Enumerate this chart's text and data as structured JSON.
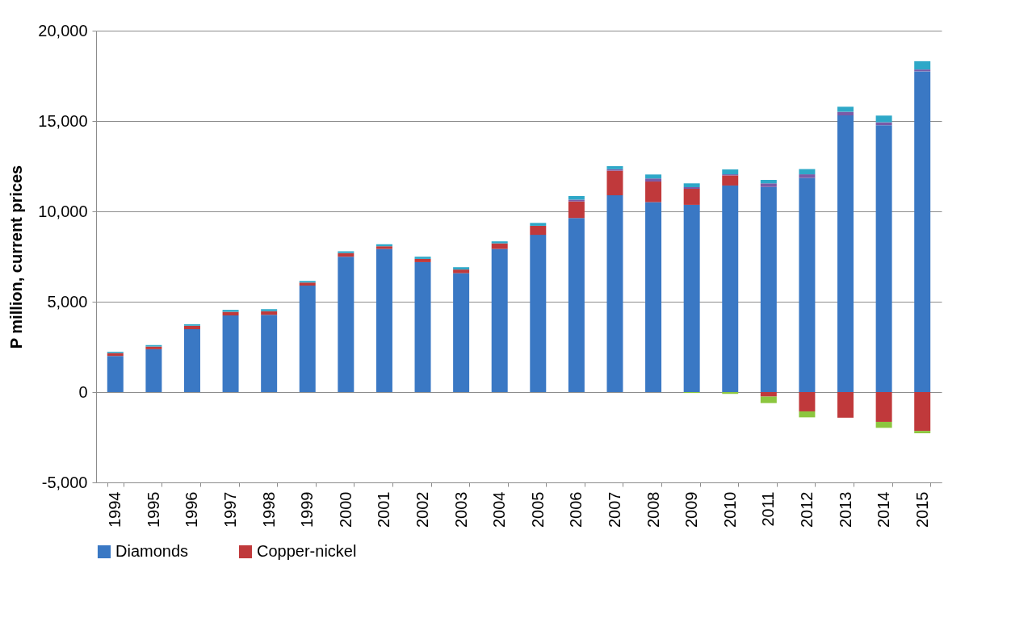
{
  "chart_data": {
    "type": "bar",
    "stacked": true,
    "ylabel": "P million, current prices",
    "categories": [
      "1994",
      "1995",
      "1996",
      "1997",
      "1998",
      "1999",
      "2000",
      "2001",
      "2002",
      "2003",
      "2004",
      "2005",
      "2006",
      "2007",
      "2008",
      "2009",
      "2010",
      "2011",
      "2012",
      "2013",
      "2014",
      "2015"
    ],
    "series": [
      {
        "name": "Diamonds",
        "color": "#3a78c4",
        "values": [
          2000,
          2370,
          3480,
          4240,
          4280,
          5890,
          7490,
          7920,
          7190,
          6580,
          7920,
          8700,
          9630,
          10890,
          10510,
          10360,
          11430,
          11350,
          11850,
          15310,
          14770,
          17750
        ]
      },
      {
        "name": "Copper-nickel",
        "color": "#c0393b",
        "values": [
          160,
          150,
          190,
          200,
          200,
          170,
          200,
          150,
          180,
          200,
          310,
          500,
          920,
          1360,
          1140,
          890,
          560,
          -250,
          -1070,
          -1420,
          -1650,
          -2150
        ]
      },
      {
        "color": "#7b5aa6",
        "values": [
          null,
          null,
          null,
          null,
          null,
          null,
          null,
          null,
          null,
          null,
          null,
          null,
          100,
          80,
          170,
          90,
          60,
          200,
          200,
          200,
          160,
          100
        ]
      },
      {
        "color": "#2ea8c8",
        "values": [
          70,
          80,
          80,
          110,
          110,
          90,
          100,
          110,
          120,
          130,
          110,
          160,
          200,
          170,
          220,
          210,
          270,
          190,
          290,
          280,
          370,
          460
        ]
      },
      {
        "color": "#8cc63f",
        "values": [
          null,
          null,
          null,
          null,
          null,
          null,
          null,
          null,
          null,
          null,
          null,
          null,
          null,
          null,
          null,
          -50,
          -100,
          -360,
          -330,
          null,
          -330,
          -130
        ]
      }
    ],
    "ylim": [
      -5000,
      20000
    ],
    "yticks": [
      {
        "value": -5000,
        "label": "-5,000"
      },
      {
        "value": 0,
        "label": "0"
      },
      {
        "value": 5000,
        "label": "5,000"
      },
      {
        "value": 10000,
        "label": "10,000"
      },
      {
        "value": 15000,
        "label": "15,000"
      },
      {
        "value": 20000,
        "label": "20,000"
      }
    ],
    "grid": "y",
    "legend": "bottom"
  }
}
